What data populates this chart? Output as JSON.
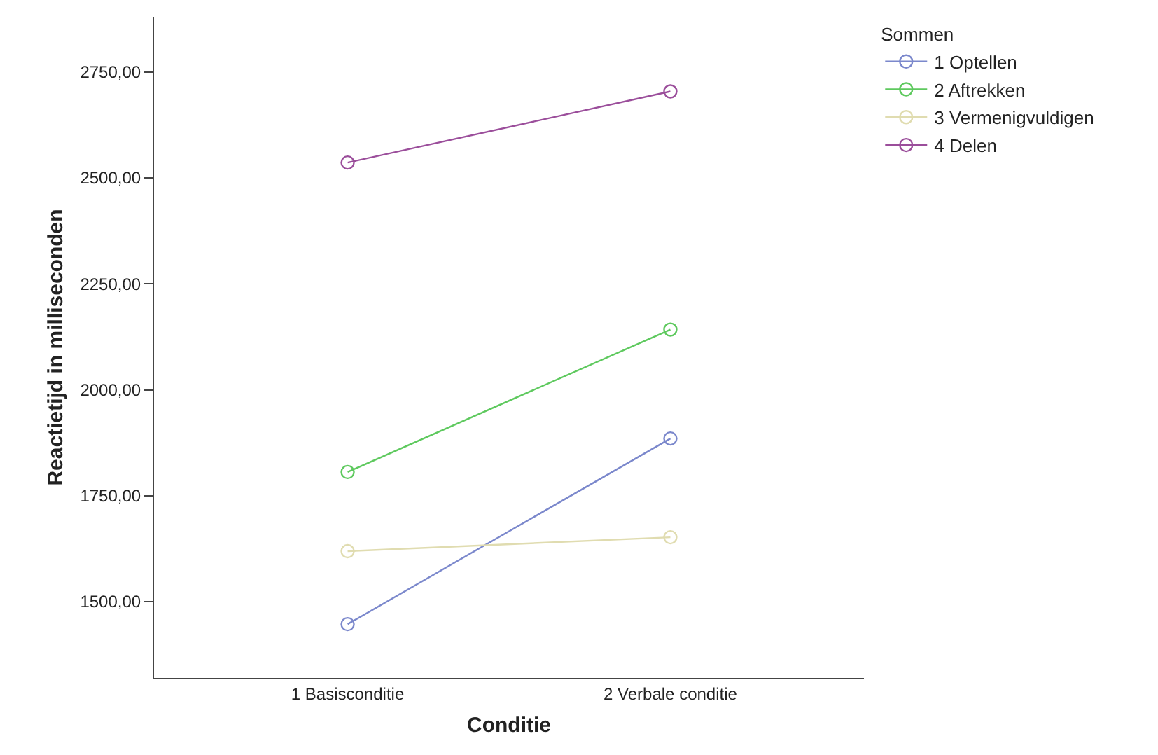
{
  "chart_data": {
    "type": "line",
    "xlabel": "Conditie",
    "ylabel": "Reactietijd in milliseconden",
    "legend_title": "Sommen",
    "categories": [
      "1 Basisconditie",
      "2 Verbale conditie"
    ],
    "series": [
      {
        "name": "1 Optellen",
        "color": "#7b88cc",
        "values": [
          1447,
          1885
        ]
      },
      {
        "name": "2 Aftrekken",
        "color": "#5ec95e",
        "values": [
          1806,
          2142
        ]
      },
      {
        "name": "3 Vermenigvuldigen",
        "color": "#e0dcb0",
        "values": [
          1619,
          1652
        ]
      },
      {
        "name": "4 Delen",
        "color": "#9b4e9b",
        "values": [
          2536,
          2704
        ]
      }
    ],
    "ylim": [
      1320,
      2880
    ],
    "yticks": [
      {
        "value": 1500,
        "label": "1500,00"
      },
      {
        "value": 1750,
        "label": "1750,00"
      },
      {
        "value": 2000,
        "label": "2000,00"
      },
      {
        "value": 2250,
        "label": "2250,00"
      },
      {
        "value": 2500,
        "label": "2500,00"
      },
      {
        "value": 2750,
        "label": "2750,00"
      }
    ],
    "grid": false,
    "legend": "top right",
    "marker": "circle",
    "line_style": "solid"
  }
}
